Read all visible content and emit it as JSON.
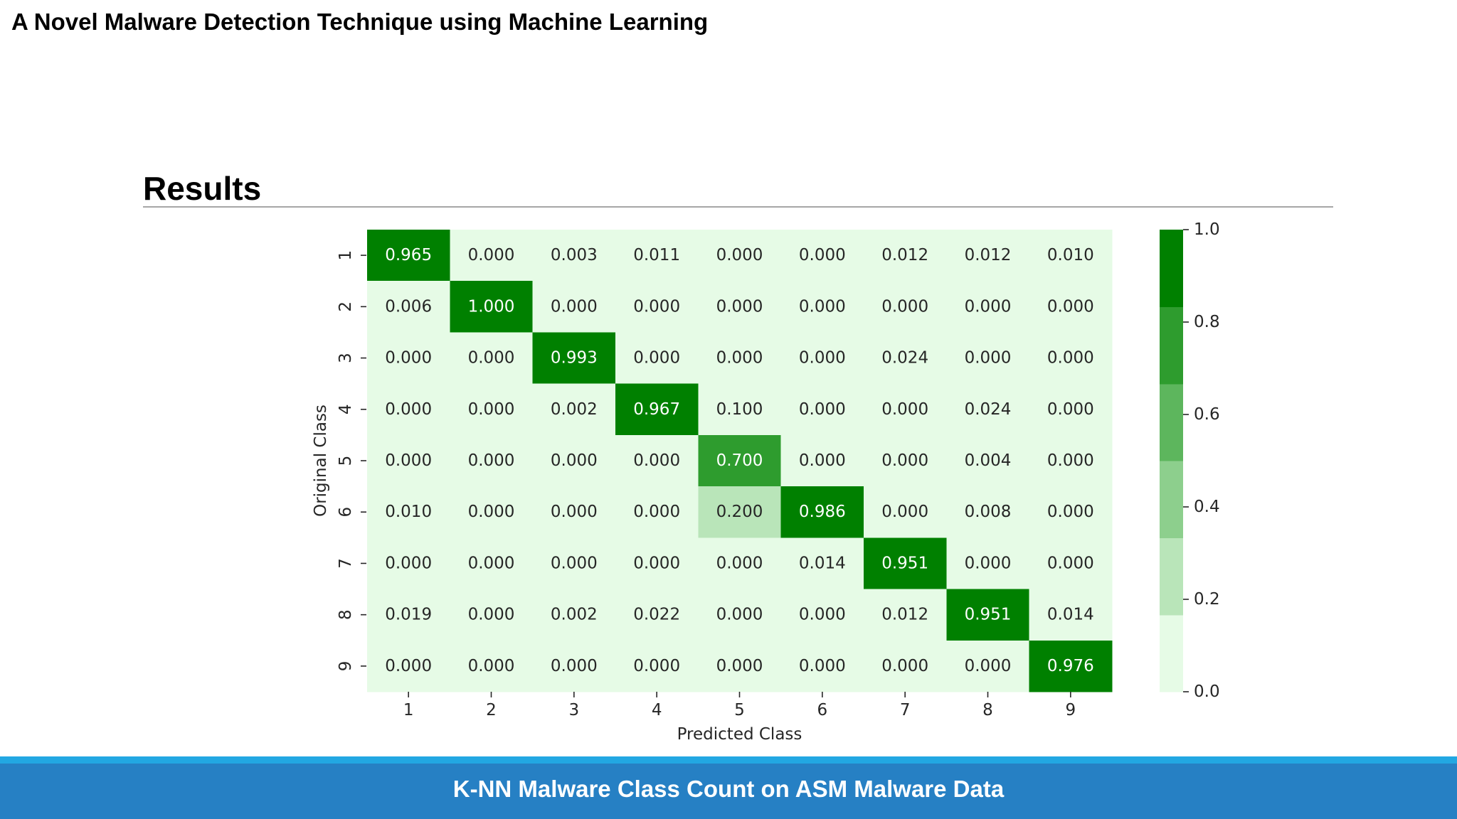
{
  "slide": {
    "title": "A Novel Malware Detection Technique using Machine Learning",
    "section_heading": "Results",
    "caption": "K-NN Malware Class Count on ASM Malware Data",
    "colors": {
      "text": "#000000",
      "heading_rule": "#a6a6a6",
      "caption_accent_strip": "#22a7e2",
      "caption_bar": "#2680c4",
      "caption_text": "#ffffff"
    }
  },
  "chart_data": {
    "type": "heatmap",
    "xlabel": "Predicted Class",
    "ylabel": "Original Class",
    "x_categories": [
      "1",
      "2",
      "3",
      "4",
      "5",
      "6",
      "7",
      "8",
      "9"
    ],
    "y_categories": [
      "1",
      "2",
      "3",
      "4",
      "5",
      "6",
      "7",
      "8",
      "9"
    ],
    "values": [
      [
        0.965,
        0.0,
        0.003,
        0.011,
        0.0,
        0.0,
        0.012,
        0.012,
        0.01
      ],
      [
        0.006,
        1.0,
        0.0,
        0.0,
        0.0,
        0.0,
        0.0,
        0.0,
        0.0
      ],
      [
        0.0,
        0.0,
        0.993,
        0.0,
        0.0,
        0.0,
        0.024,
        0.0,
        0.0
      ],
      [
        0.0,
        0.0,
        0.002,
        0.967,
        0.1,
        0.0,
        0.0,
        0.024,
        0.0
      ],
      [
        0.0,
        0.0,
        0.0,
        0.0,
        0.7,
        0.0,
        0.0,
        0.004,
        0.0
      ],
      [
        0.01,
        0.0,
        0.0,
        0.0,
        0.2,
        0.986,
        0.0,
        0.008,
        0.0
      ],
      [
        0.0,
        0.0,
        0.0,
        0.0,
        0.0,
        0.014,
        0.951,
        0.0,
        0.0
      ],
      [
        0.019,
        0.0,
        0.002,
        0.022,
        0.0,
        0.0,
        0.012,
        0.951,
        0.014
      ],
      [
        0.0,
        0.0,
        0.0,
        0.0,
        0.0,
        0.0,
        0.0,
        0.0,
        0.976
      ]
    ],
    "value_range": [
      0.0,
      1.0
    ],
    "colorbar": {
      "position": "right",
      "ticks": [
        0.0,
        0.2,
        0.4,
        0.6,
        0.8,
        1.0
      ],
      "colors": [
        "#e6fbe6",
        "#b9e5b9",
        "#8dcf8d",
        "#5db65d",
        "#2e9c2e",
        "#008000"
      ]
    },
    "annot_text_colors": {
      "dark": "#262626",
      "light": "#ffffff"
    },
    "grid": false
  }
}
